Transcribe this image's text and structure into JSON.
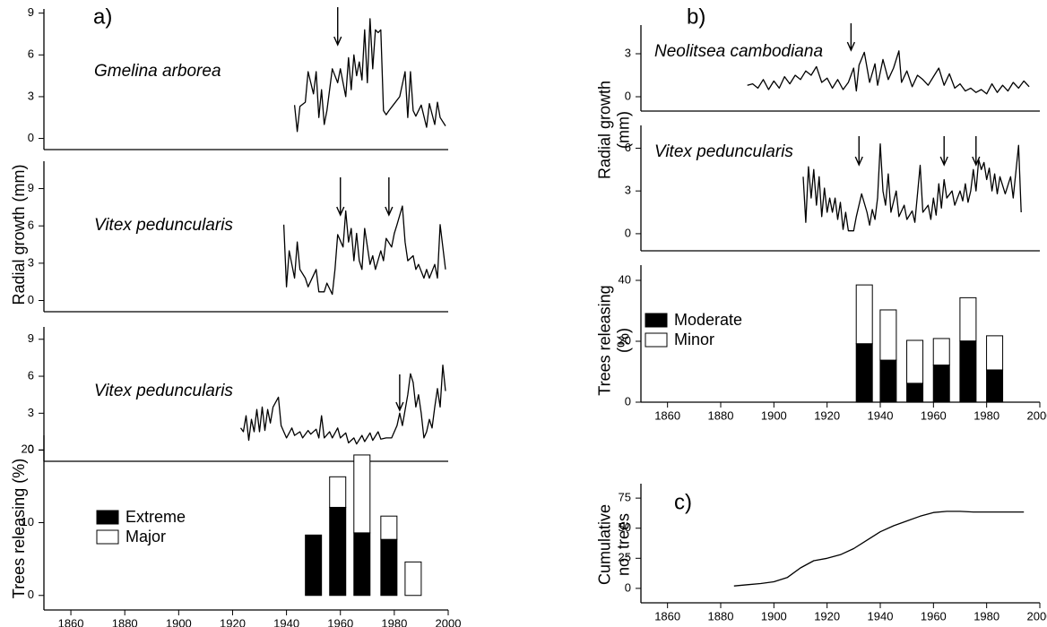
{
  "chart_data": [
    {
      "type": "line",
      "panel_label": "a)",
      "label": "Gmelina arborea",
      "xlim": [
        1850,
        2000
      ],
      "ylim": [
        -0.8,
        9.3
      ],
      "yticks": [
        0,
        3,
        6,
        9
      ],
      "arrows": [
        1959
      ],
      "x": [
        1943,
        1944,
        1945,
        1947,
        1948,
        1950,
        1951,
        1952,
        1953,
        1954,
        1955,
        1956,
        1957,
        1959,
        1960,
        1962,
        1963,
        1964,
        1965,
        1966,
        1967,
        1968,
        1969,
        1970,
        1971,
        1972,
        1973,
        1974,
        1975,
        1976,
        1977,
        1978,
        1980,
        1982,
        1984,
        1985,
        1986,
        1987,
        1988,
        1990,
        1992,
        1993,
        1995,
        1996,
        1997,
        1999
      ],
      "values": [
        2.4,
        0.5,
        2.3,
        2.6,
        4.8,
        3.2,
        4.8,
        1.5,
        3.5,
        1.0,
        2.0,
        3.5,
        5.0,
        4.0,
        5.0,
        3.0,
        5.8,
        3.5,
        6.0,
        4.5,
        5.5,
        4.2,
        7.8,
        4.0,
        8.6,
        5.0,
        7.8,
        7.6,
        7.8,
        2.0,
        1.7,
        2.0,
        2.5,
        3.0,
        4.8,
        1.5,
        4.8,
        2.0,
        1.6,
        2.4,
        0.8,
        2.5,
        1.0,
        2.6,
        1.5,
        0.9
      ]
    },
    {
      "type": "line",
      "label": "Vitex peduncularis",
      "ylabel": "Radial growth (mm)",
      "xlim": [
        1850,
        2000
      ],
      "ylim": [
        -0.9,
        11.2
      ],
      "yticks": [
        0,
        3,
        6,
        9
      ],
      "arrows": [
        1960,
        1978
      ],
      "x": [
        1939,
        1940,
        1941,
        1943,
        1944,
        1945,
        1947,
        1948,
        1951,
        1952,
        1954,
        1955,
        1957,
        1958,
        1959,
        1961,
        1962,
        1963,
        1964,
        1965,
        1966,
        1967,
        1968,
        1969,
        1971,
        1972,
        1973,
        1975,
        1976,
        1977,
        1979,
        1980,
        1981,
        1983,
        1984,
        1985,
        1987,
        1988,
        1989,
        1991,
        1992,
        1993,
        1995,
        1996,
        1997,
        1999
      ],
      "values": [
        6.1,
        1.1,
        4.0,
        1.8,
        4.7,
        2.5,
        1.8,
        1.1,
        2.5,
        0.7,
        0.7,
        1.4,
        0.5,
        2.5,
        5.3,
        4.3,
        7.2,
        4.7,
        5.8,
        3.2,
        5.4,
        3.2,
        2.5,
        5.8,
        2.9,
        3.6,
        2.5,
        4.0,
        3.2,
        5.0,
        4.3,
        5.4,
        6.1,
        7.6,
        4.7,
        3.2,
        3.6,
        2.5,
        2.9,
        1.8,
        2.5,
        1.8,
        2.9,
        1.8,
        6.1,
        2.5
      ]
    },
    {
      "type": "line",
      "label": "Vitex peduncularis",
      "xlim": [
        1850,
        2000
      ],
      "ylim": [
        -0.9,
        10
      ],
      "yticks": [
        0,
        3,
        6,
        9
      ],
      "arrows": [
        1982
      ],
      "x": [
        1923,
        1924,
        1925,
        1926,
        1927,
        1928,
        1929,
        1930,
        1931,
        1932,
        1933,
        1934,
        1935,
        1937,
        1938,
        1940,
        1942,
        1943,
        1945,
        1946,
        1948,
        1949,
        1951,
        1952,
        1953,
        1954,
        1956,
        1957,
        1959,
        1960,
        1962,
        1963,
        1965,
        1966,
        1968,
        1969,
        1971,
        1972,
        1974,
        1975,
        1977,
        1979,
        1981,
        1982,
        1983,
        1985,
        1986,
        1987,
        1988,
        1989,
        1990,
        1991,
        1992,
        1993,
        1994,
        1995,
        1996,
        1997,
        1998,
        1999
      ],
      "values": [
        1.8,
        1.5,
        2.8,
        0.8,
        2.5,
        1.5,
        3.3,
        1.5,
        3.5,
        1.6,
        3.3,
        2.2,
        3.5,
        4.3,
        2.0,
        1.0,
        1.8,
        1.2,
        1.5,
        1.0,
        1.6,
        1.3,
        1.7,
        1.0,
        2.8,
        1.0,
        1.5,
        1.0,
        1.8,
        1.0,
        1.4,
        0.6,
        1.0,
        0.5,
        1.2,
        0.7,
        1.4,
        0.8,
        1.5,
        0.9,
        1.0,
        1.0,
        2.0,
        3.0,
        2.0,
        4.5,
        6.2,
        5.5,
        3.5,
        4.5,
        3.0,
        1.0,
        1.5,
        2.5,
        1.8,
        3.5,
        5.0,
        3.5,
        6.9,
        4.8
      ]
    },
    {
      "type": "bar",
      "ylabel": "Trees releasing (%)",
      "xlim": [
        1850,
        2000
      ],
      "ylim": [
        -2,
        22
      ],
      "yticks": [
        0,
        10,
        20
      ],
      "xticks": [
        1860,
        1880,
        1900,
        1920,
        1940,
        1960,
        1980,
        2000
      ],
      "x": [
        1950,
        1959,
        1968,
        1978,
        1987
      ],
      "series": [
        {
          "name": "Extreme",
          "color": "#000000",
          "values": [
            8.3,
            12.1,
            8.6,
            7.7,
            0
          ]
        },
        {
          "name": "Major",
          "color": "#ffffff",
          "values": [
            0,
            4.2,
            10.7,
            3.2,
            4.6
          ]
        }
      ]
    },
    {
      "type": "line",
      "panel_label": "b)",
      "label": "Neolitsea cambodiana",
      "xlim": [
        1850,
        2000
      ],
      "ylim": [
        -1,
        5
      ],
      "yticks": [
        0,
        3
      ],
      "arrows": [
        1929
      ],
      "x": [
        1890,
        1892,
        1894,
        1896,
        1898,
        1900,
        1902,
        1904,
        1906,
        1908,
        1910,
        1912,
        1914,
        1916,
        1918,
        1920,
        1922,
        1924,
        1926,
        1928,
        1930,
        1931,
        1932,
        1934,
        1936,
        1938,
        1939,
        1941,
        1943,
        1945,
        1947,
        1948,
        1950,
        1952,
        1954,
        1956,
        1958,
        1960,
        1962,
        1964,
        1966,
        1968,
        1970,
        1972,
        1974,
        1976,
        1978,
        1980,
        1982,
        1984,
        1986,
        1988,
        1990,
        1992,
        1994,
        1996
      ],
      "values": [
        0.8,
        0.9,
        0.6,
        1.2,
        0.5,
        1.1,
        0.6,
        1.4,
        0.9,
        1.5,
        1.2,
        1.8,
        1.5,
        2.1,
        1.0,
        1.3,
        0.6,
        1.2,
        0.5,
        1.0,
        2.0,
        0.4,
        2.2,
        3.1,
        1.0,
        2.3,
        0.8,
        2.6,
        1.2,
        2.0,
        3.2,
        1.0,
        1.8,
        0.7,
        1.5,
        1.2,
        0.8,
        1.4,
        2.0,
        0.8,
        1.6,
        0.6,
        0.9,
        0.4,
        0.6,
        0.3,
        0.5,
        0.2,
        0.9,
        0.3,
        0.8,
        0.4,
        1.0,
        0.6,
        1.1,
        0.7
      ]
    },
    {
      "type": "line",
      "label": "Vitex peduncularis",
      "ylabel": [
        "Radial growth",
        "(mm)"
      ],
      "xlim": [
        1850,
        2000
      ],
      "ylim": [
        -1.2,
        7.6
      ],
      "yticks": [
        0,
        3,
        6
      ],
      "arrows": [
        1932,
        1964,
        1976
      ],
      "x": [
        1911,
        1912,
        1913,
        1914,
        1915,
        1916,
        1917,
        1918,
        1919,
        1920,
        1921,
        1922,
        1923,
        1924,
        1925,
        1926,
        1927,
        1928,
        1930,
        1931,
        1933,
        1935,
        1936,
        1937,
        1938,
        1939,
        1940,
        1941,
        1942,
        1943,
        1944,
        1946,
        1947,
        1949,
        1950,
        1952,
        1953,
        1955,
        1956,
        1958,
        1959,
        1960,
        1961,
        1962,
        1963,
        1964,
        1965,
        1967,
        1968,
        1970,
        1971,
        1972,
        1973,
        1974,
        1975,
        1976,
        1977,
        1978,
        1979,
        1980,
        1981,
        1982,
        1983,
        1984,
        1985,
        1987,
        1989,
        1990,
        1992,
        1993
      ],
      "values": [
        4.0,
        0.8,
        4.7,
        2.5,
        4.5,
        2.0,
        4.0,
        1.2,
        3.2,
        1.5,
        2.5,
        1.5,
        2.5,
        1.0,
        2.2,
        0.3,
        1.5,
        0.2,
        0.2,
        1.2,
        2.8,
        1.5,
        0.6,
        1.7,
        1.0,
        2.5,
        6.3,
        3.0,
        2.0,
        4.2,
        1.5,
        3.0,
        1.2,
        2.0,
        1.0,
        1.6,
        0.8,
        4.8,
        1.5,
        2.0,
        1.0,
        2.5,
        1.3,
        3.5,
        1.8,
        3.8,
        2.5,
        3.0,
        2.0,
        3.0,
        2.3,
        3.5,
        2.2,
        3.0,
        4.5,
        3.0,
        5.2,
        4.5,
        5.0,
        3.8,
        4.6,
        3.0,
        4.2,
        2.8,
        4.0,
        2.8,
        4.0,
        2.5,
        6.2,
        1.5
      ]
    },
    {
      "type": "bar",
      "ylabel": [
        "Trees releasing",
        "(%)"
      ],
      "xlim": [
        1850,
        2000
      ],
      "ylim": [
        0,
        45
      ],
      "yticks": [
        0,
        20,
        40
      ],
      "xticks": [
        1860,
        1880,
        1900,
        1920,
        1940,
        1960,
        1980,
        2000
      ],
      "x": [
        1934,
        1943,
        1953,
        1963,
        1973,
        1983
      ],
      "series": [
        {
          "name": "Moderate",
          "color": "#000000",
          "values": [
            19.2,
            13.8,
            6.2,
            12.2,
            20.1,
            10.6
          ]
        },
        {
          "name": "Minor",
          "color": "#ffffff",
          "values": [
            19.3,
            16.5,
            14.1,
            8.7,
            14.2,
            11.2
          ]
        }
      ]
    },
    {
      "type": "line",
      "panel_label": "c)",
      "ylabel": [
        "Cumulative",
        "no. trees"
      ],
      "xlim": [
        1850,
        2000
      ],
      "ylim": [
        -12,
        87
      ],
      "yticks": [
        0,
        25,
        50,
        75
      ],
      "xticks": [
        1860,
        1880,
        1900,
        1920,
        1940,
        1960,
        1980,
        2000
      ],
      "x": [
        1885,
        1890,
        1895,
        1900,
        1905,
        1910,
        1915,
        1920,
        1925,
        1930,
        1935,
        1940,
        1945,
        1950,
        1955,
        1960,
        1965,
        1970,
        1975,
        1980,
        1985,
        1990,
        1994
      ],
      "values": [
        2,
        3,
        4,
        5.5,
        9,
        17,
        23,
        25,
        28,
        33,
        40,
        47,
        52,
        56,
        60,
        63,
        64,
        64,
        63.5,
        63.5,
        63.5,
        63.5,
        63.5
      ]
    }
  ]
}
